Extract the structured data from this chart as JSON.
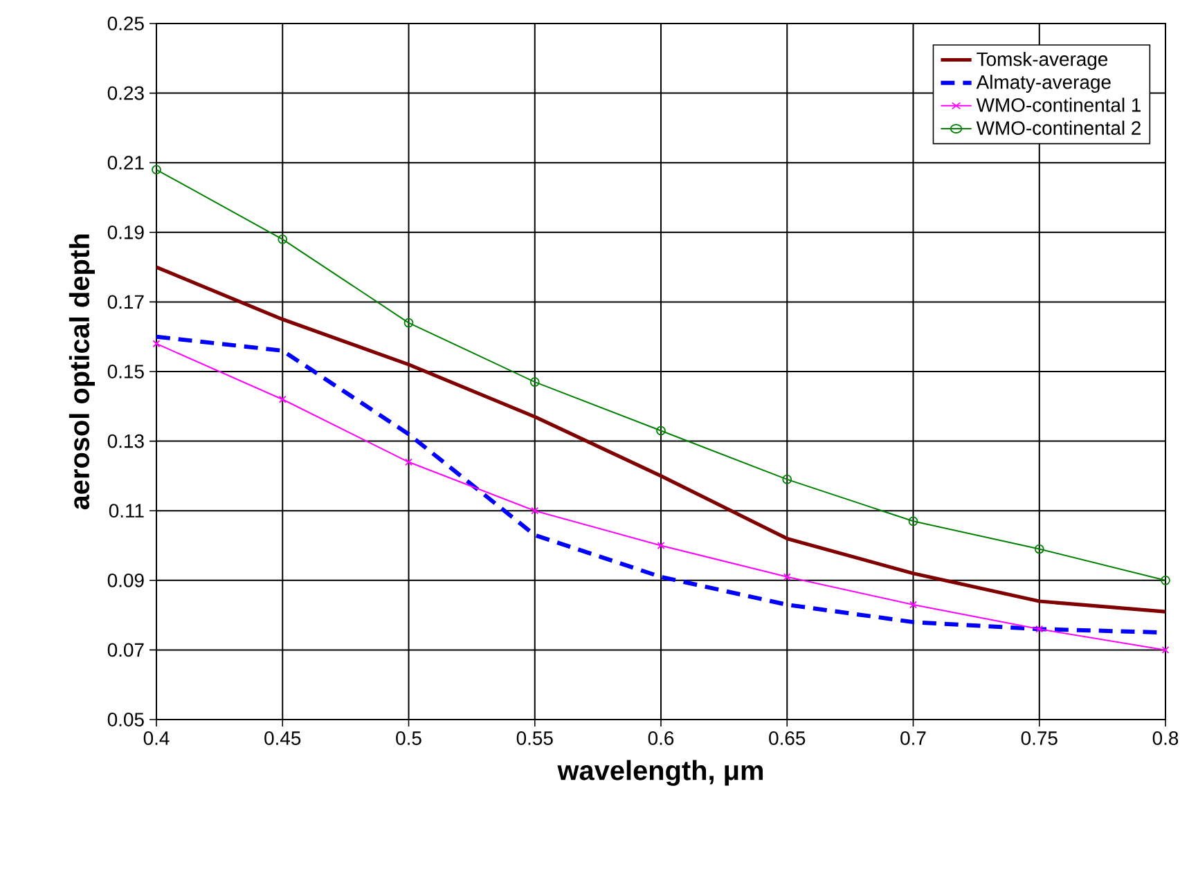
{
  "chart_data": {
    "type": "line",
    "xlabel": "wavelength, μm",
    "ylabel": "aerosol optical depth",
    "x": [
      0.4,
      0.45,
      0.5,
      0.55,
      0.6,
      0.65,
      0.7,
      0.75,
      0.8
    ],
    "series": [
      {
        "name": "Tomsk-average",
        "color": "#800000",
        "marker": "none",
        "line_style": "solid",
        "values": [
          0.18,
          0.165,
          0.152,
          0.137,
          0.12,
          0.102,
          0.092,
          0.084,
          0.081
        ]
      },
      {
        "name": "Almaty-average",
        "color": "#0000ff",
        "marker": "none",
        "line_style": "dashed",
        "values": [
          0.16,
          0.156,
          0.132,
          0.103,
          0.091,
          0.083,
          0.078,
          0.076,
          0.075
        ]
      },
      {
        "name": "WMO-continental 1",
        "color": "#ff00ff",
        "marker": "cross",
        "line_style": "solid",
        "values": [
          0.158,
          0.142,
          0.124,
          0.11,
          0.1,
          0.091,
          0.083,
          0.076,
          0.07
        ]
      },
      {
        "name": "WMO-continental 2",
        "color": "#008000",
        "marker": "circle",
        "line_style": "solid",
        "values": [
          0.208,
          0.188,
          0.164,
          0.147,
          0.133,
          0.119,
          0.107,
          0.099,
          0.09
        ]
      }
    ],
    "xlim": [
      0.4,
      0.8
    ],
    "ylim": [
      0.05,
      0.25
    ],
    "xticks": [
      0.4,
      0.45,
      0.5,
      0.55,
      0.6,
      0.65,
      0.7,
      0.75,
      0.8
    ],
    "yticks": [
      0.05,
      0.07,
      0.09,
      0.11,
      0.13,
      0.15,
      0.17,
      0.19,
      0.21,
      0.23,
      0.25
    ],
    "grid": true,
    "legend": "top right"
  }
}
